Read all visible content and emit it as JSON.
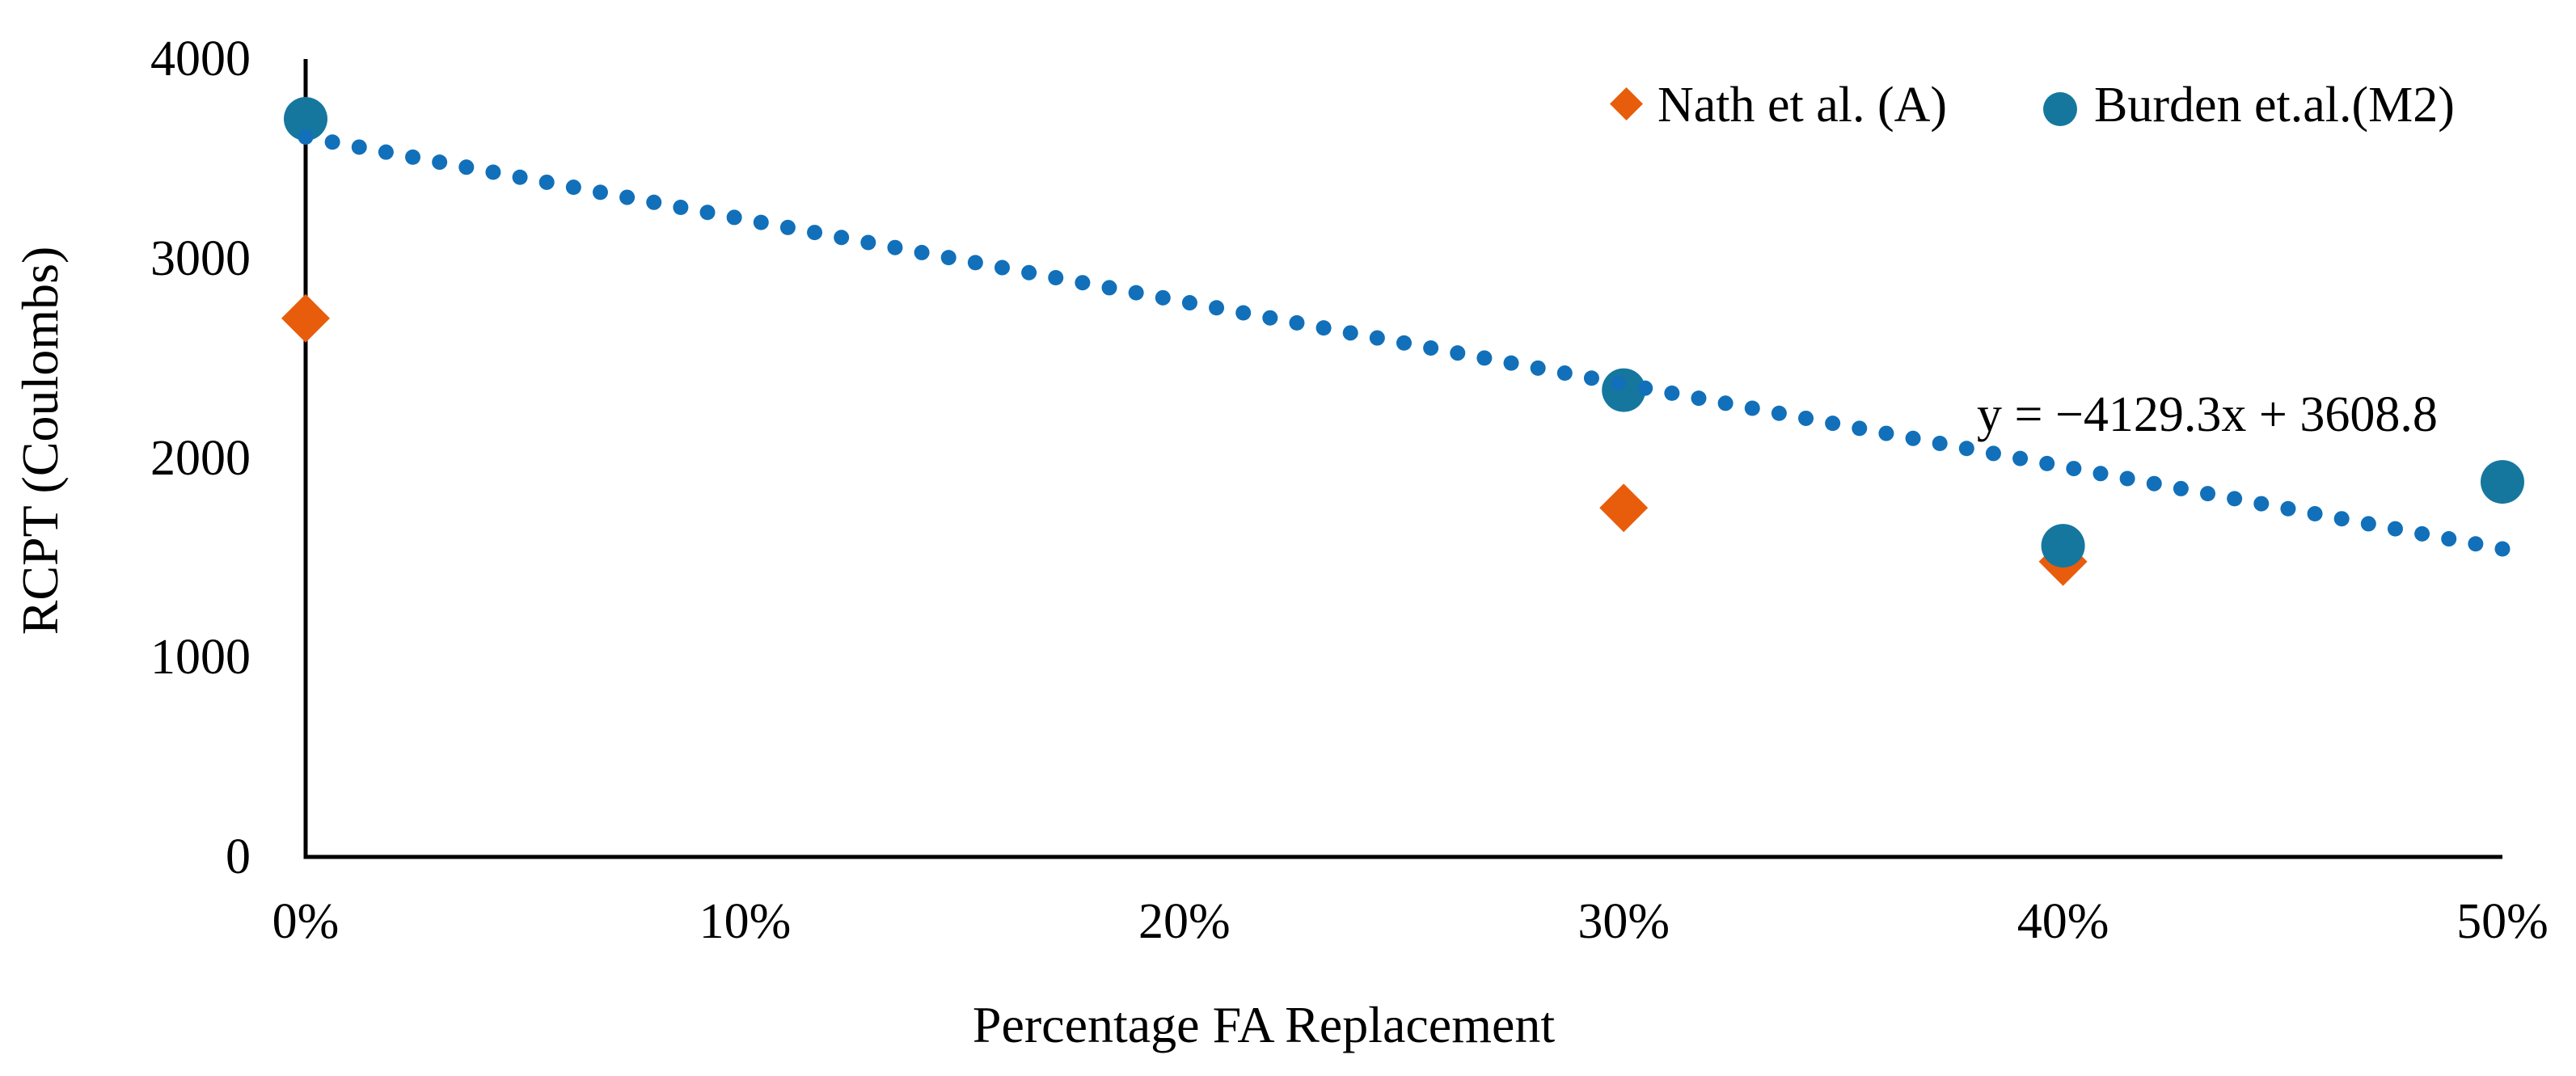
{
  "legend": {
    "items": [
      {
        "label": "Nath et al. (A)",
        "marker": "diamond",
        "color": "#E85D0C"
      },
      {
        "label": "Burden et.al.(M2)",
        "marker": "circle",
        "color": "#16779E"
      }
    ]
  },
  "chart_data": {
    "type": "scatter",
    "xlabel": "Percentage FA Replacement",
    "ylabel": "RCPT (Coulombs)",
    "x_ticks": [
      "0%",
      "10%",
      "20%",
      "30%",
      "40%",
      "50%"
    ],
    "y_ticks": [
      "0",
      "1000",
      "2000",
      "3000",
      "4000"
    ],
    "xlim": [
      0,
      0.5
    ],
    "ylim": [
      0,
      4000
    ],
    "grid": false,
    "legend_position": "top-right",
    "axis_color": "#000000",
    "series": [
      {
        "name": "Nath et al. (A)",
        "marker": "diamond",
        "color": "#E85D0C",
        "points": [
          {
            "x": 0.0,
            "y": 2700
          },
          {
            "x": 0.3,
            "y": 1750
          },
          {
            "x": 0.4,
            "y": 1480
          }
        ]
      },
      {
        "name": "Burden et.al.(M2)",
        "marker": "circle",
        "color": "#16779E",
        "points": [
          {
            "x": 0.0,
            "y": 3700
          },
          {
            "x": 0.3,
            "y": 2340
          },
          {
            "x": 0.4,
            "y": 1560
          },
          {
            "x": 0.5,
            "y": 1880
          }
        ]
      }
    ],
    "trendline": {
      "applies_to": "Burden et.al.(M2)",
      "style": "dotted",
      "color": "#1170B9",
      "slope": -4129.3,
      "intercept": 3608.8,
      "x_start": 0,
      "x_end": 0.5,
      "equation_text": "y = −4129.3x + 3608.8"
    }
  }
}
